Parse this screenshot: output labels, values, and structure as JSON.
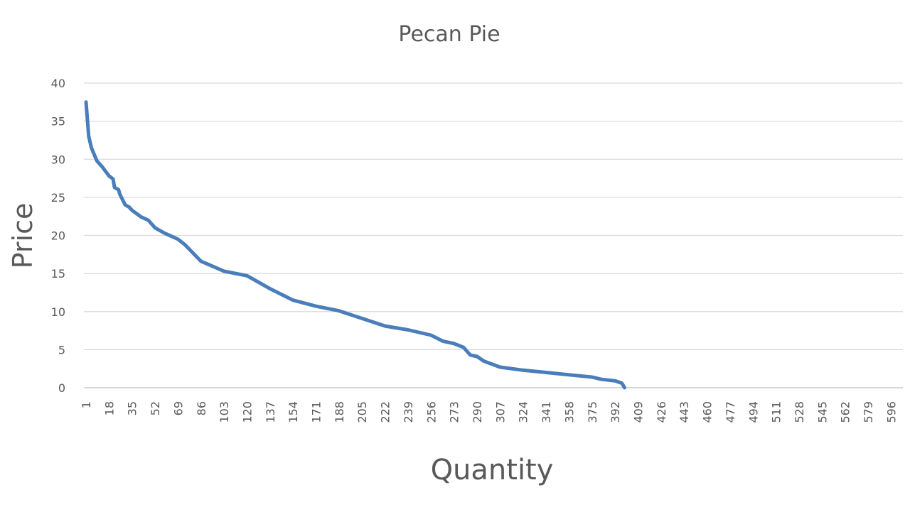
{
  "chart_data": {
    "type": "line",
    "title": "Pecan Pie",
    "xlabel": "Quantity",
    "ylabel": "Price",
    "ylim": [
      0,
      40
    ],
    "y_ticks": [
      0,
      5,
      10,
      15,
      20,
      25,
      30,
      35,
      40
    ],
    "x_range": [
      1,
      600
    ],
    "x_tick_labels": [
      "1",
      "18",
      "35",
      "52",
      "69",
      "86",
      "103",
      "120",
      "137",
      "154",
      "171",
      "188",
      "205",
      "222",
      "239",
      "256",
      "273",
      "290",
      "307",
      "324",
      "341",
      "358",
      "375",
      "392",
      "409",
      "426",
      "443",
      "460",
      "477",
      "494",
      "511",
      "528",
      "545",
      "562",
      "579",
      "596"
    ],
    "grid": true,
    "legend": "none",
    "series": [
      {
        "color": "#4a7ebb",
        "x": [
          1,
          3,
          5,
          9,
          13,
          18,
          21,
          22,
          25,
          26,
          30,
          33,
          35,
          42,
          47,
          52,
          59,
          69,
          74,
          86,
          90,
          103,
          120,
          137,
          154,
          171,
          188,
          205,
          222,
          239,
          256,
          265,
          273,
          280,
          285,
          290,
          295,
          307,
          324,
          341,
          358,
          375,
          382,
          392,
          397,
          399
        ],
        "y": [
          37.5,
          33,
          31.5,
          29.8,
          29,
          27.8,
          27.4,
          26.3,
          26,
          25.4,
          24,
          23.7,
          23.3,
          22.4,
          22,
          21,
          20.3,
          19.5,
          18.8,
          16.6,
          16.3,
          15.3,
          14.7,
          13,
          11.5,
          10.7,
          10.1,
          9.1,
          8.1,
          7.6,
          6.9,
          6.1,
          5.8,
          5.3,
          4.3,
          4.1,
          3.5,
          2.7,
          2.3,
          2.0,
          1.7,
          1.4,
          1.1,
          0.9,
          0.6,
          0
        ]
      }
    ]
  }
}
